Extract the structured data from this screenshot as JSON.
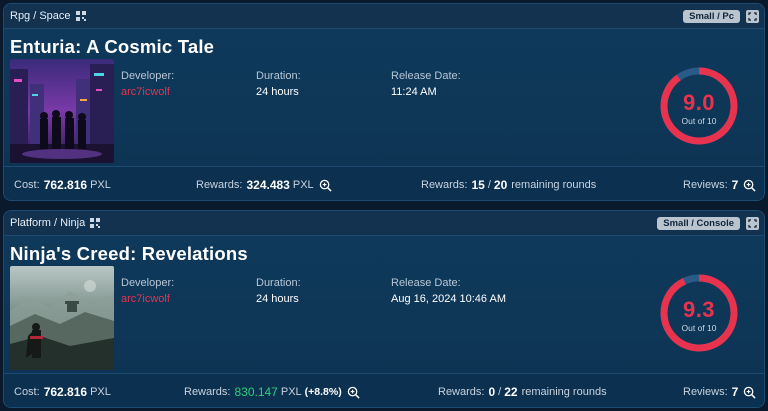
{
  "colors": {
    "accent_red": "#e8334f",
    "green": "#2ecf7a",
    "card_bg": "#0f3a5c",
    "page_bg": "#0a1a2c"
  },
  "cards": [
    {
      "genre": "Rpg / Space",
      "badge": "Small / Pc",
      "title": "Enturia: A Cosmic Tale",
      "developer_label": "Developer:",
      "developer": "arc7icwolf",
      "duration_label": "Duration:",
      "duration": "24 hours",
      "release_label": "Release Date:",
      "release": "11:24 AM",
      "score": "9.0",
      "score_fraction": 0.9,
      "score_sub": "Out of 10",
      "cost_label": "Cost:",
      "cost": "762.816",
      "cost_unit": "PXL",
      "rewards_label": "Rewards:",
      "rewards": "324.483",
      "rewards_unit": "PXL",
      "rewards_change": "",
      "rounds_label": "Rewards:",
      "rounds_done": "15",
      "rounds_sep": "/",
      "rounds_total": "20",
      "rounds_text": "remaining rounds",
      "reviews_label": "Reviews:",
      "reviews": "7",
      "thumbnail_icon": "cyberpunk-city-image"
    },
    {
      "genre": "Platform / Ninja",
      "badge": "Small / Console",
      "title": "Ninja's Creed: Revelations",
      "developer_label": "Developer:",
      "developer": "arc7icwolf",
      "duration_label": "Duration:",
      "duration": "24 hours",
      "release_label": "Release Date:",
      "release": "Aug 16, 2024 10:46 AM",
      "score": "9.3",
      "score_fraction": 0.93,
      "score_sub": "Out of 10",
      "cost_label": "Cost:",
      "cost": "762.816",
      "cost_unit": "PXL",
      "rewards_label": "Rewards:",
      "rewards": "830.147",
      "rewards_unit": "PXL",
      "rewards_change": "(+8.8%)",
      "rounds_label": "Rewards:",
      "rounds_done": "0",
      "rounds_sep": "/",
      "rounds_total": "22",
      "rounds_text": "remaining rounds",
      "reviews_label": "Reviews:",
      "reviews": "7",
      "thumbnail_icon": "ninja-landscape-image"
    }
  ]
}
